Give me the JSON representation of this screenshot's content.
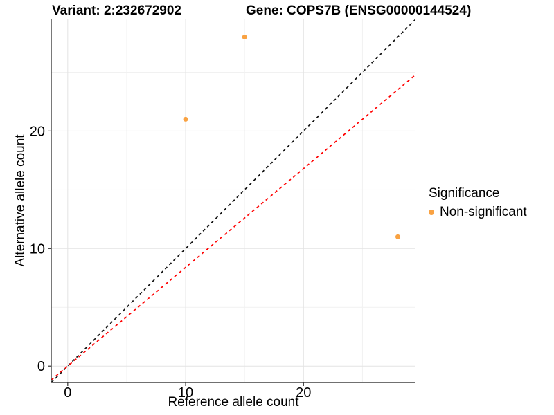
{
  "titles": {
    "left": "Variant: 2:232672902",
    "right": "Gene: COPS7B (ENSG00000144524)"
  },
  "axes": {
    "x_title": "Reference allele count",
    "y_title": "Alternative allele count"
  },
  "legend": {
    "title": "Significance",
    "items": [
      {
        "label": "Non-significant",
        "color": "#F9A242"
      }
    ]
  },
  "colors": {
    "grid_major": "#E3E3E3",
    "grid_minor": "#F1F1F1",
    "axis_line": "#404040",
    "tick_mark": "#333333",
    "text": "#000000",
    "identity_line": "#111111",
    "ratio_line": "#FF0000",
    "point": "#F9A242"
  },
  "chart_data": {
    "type": "scatter",
    "title": "Variant: 2:232672902    Gene: COPS7B (ENSG00000144524)",
    "xlabel": "Reference allele count",
    "ylabel": "Alternative allele count",
    "xlim": [
      -1.4,
      29.5
    ],
    "ylim": [
      -1.4,
      29.5
    ],
    "x_ticks": [
      0,
      10,
      20
    ],
    "y_ticks": [
      0,
      10,
      20
    ],
    "x_minor": [
      5,
      15,
      25
    ],
    "y_minor": [
      5,
      15,
      25
    ],
    "grid": true,
    "legend_position": "right",
    "series": [
      {
        "name": "Non-significant",
        "color": "#F9A242",
        "points": [
          {
            "x": 10,
            "y": 21
          },
          {
            "x": 15,
            "y": 28
          },
          {
            "x": 28,
            "y": 11
          }
        ]
      }
    ],
    "lines": [
      {
        "name": "identity",
        "slope": 1.0,
        "intercept": 0,
        "color": "#111111",
        "dash": true
      },
      {
        "name": "expected-ratio",
        "slope": 0.84,
        "intercept": 0,
        "color": "#FF0000",
        "dash": true
      }
    ]
  }
}
